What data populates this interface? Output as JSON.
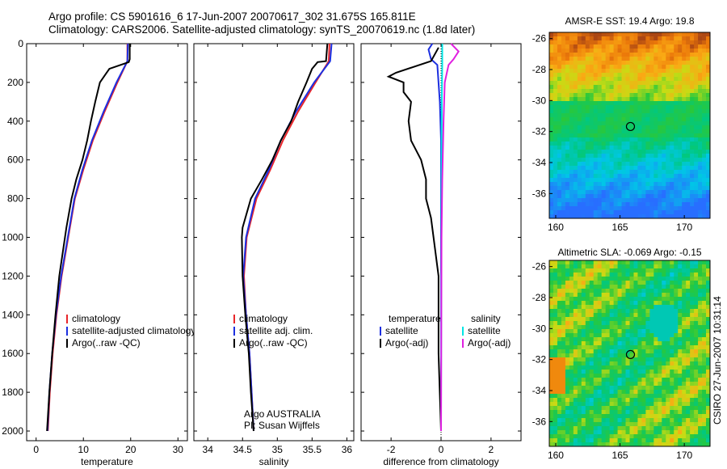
{
  "header": {
    "line1": "Argo profile: CS 5901616_6 17-Jun-2007 20070617_302 31.675S 165.811E",
    "line2": "Climatology: CARS2006. Satellite-adjusted climatology: synTS_20070619.nc (1.8d later)"
  },
  "side_label": "CSIRO 27-Jun-2007 10:31:14",
  "chart_data": [
    {
      "type": "line",
      "xlabel": "temperature",
      "ylabel": "",
      "xlim": [
        -2,
        32
      ],
      "ylim": [
        0,
        2050
      ],
      "y_reversed": true,
      "xticks": [
        0,
        10,
        20,
        30
      ],
      "yticks": [
        0,
        200,
        400,
        600,
        800,
        1000,
        1200,
        1400,
        1600,
        1800,
        2000
      ],
      "legend": [
        "climatology",
        "satellite-adjusted climatology",
        "Argo(..raw -QC)"
      ],
      "legend_position": "lower-right",
      "series": [
        {
          "name": "climatology",
          "color": "#e8262a",
          "points": [
            [
              19.3,
              0
            ],
            [
              19.3,
              90
            ],
            [
              17.2,
              200
            ],
            [
              14.5,
              350
            ],
            [
              12.0,
              500
            ],
            [
              10.0,
              650
            ],
            [
              8.2,
              800
            ],
            [
              6.8,
              1000
            ],
            [
              5.4,
              1200
            ],
            [
              4.3,
              1400
            ],
            [
              3.5,
              1600
            ],
            [
              2.9,
              1800
            ],
            [
              2.5,
              2000
            ]
          ]
        },
        {
          "name": "satellite-adjusted climatology",
          "color": "#1c2fe0",
          "points": [
            [
              19.4,
              0
            ],
            [
              19.3,
              90
            ],
            [
              17.0,
              200
            ],
            [
              14.3,
              350
            ],
            [
              11.8,
              500
            ],
            [
              9.8,
              650
            ],
            [
              8.1,
              800
            ],
            [
              6.7,
              1000
            ],
            [
              5.3,
              1200
            ],
            [
              4.2,
              1400
            ],
            [
              3.4,
              1600
            ],
            [
              2.8,
              1800
            ],
            [
              2.4,
              2000
            ]
          ]
        },
        {
          "name": "Argo(..raw -QC)",
          "color": "#000000",
          "points": [
            [
              19.8,
              0
            ],
            [
              19.8,
              80
            ],
            [
              19.6,
              95
            ],
            [
              15.5,
              130
            ],
            [
              13.5,
              200
            ],
            [
              12.5,
              300
            ],
            [
              11.6,
              400
            ],
            [
              10.8,
              500
            ],
            [
              9.8,
              600
            ],
            [
              8.5,
              700
            ],
            [
              7.5,
              800
            ],
            [
              6.4,
              950
            ],
            [
              5.5,
              1100
            ],
            [
              4.9,
              1200
            ],
            [
              4.1,
              1400
            ],
            [
              3.4,
              1600
            ],
            [
              2.8,
              1800
            ],
            [
              2.3,
              2000
            ]
          ]
        }
      ]
    },
    {
      "type": "line",
      "xlabel": "salinity",
      "xlim": [
        33.8,
        36.1
      ],
      "ylim": [
        0,
        2050
      ],
      "y_reversed": true,
      "xticks": [
        34,
        34.5,
        35,
        35.5,
        36
      ],
      "legend": [
        "climatology",
        "satellite adj. clim.",
        "Argo(..raw -QC)"
      ],
      "legend_position": "lower-right",
      "annotation": [
        "Argo AUSTRALIA",
        "PI: Susan Wijffels"
      ],
      "series": [
        {
          "name": "climatology",
          "color": "#e8262a",
          "points": [
            [
              35.75,
              0
            ],
            [
              35.74,
              90
            ],
            [
              35.55,
              200
            ],
            [
              35.3,
              350
            ],
            [
              35.08,
              500
            ],
            [
              34.9,
              650
            ],
            [
              34.7,
              800
            ],
            [
              34.56,
              1000
            ],
            [
              34.52,
              1200
            ],
            [
              34.55,
              1400
            ],
            [
              34.6,
              1600
            ],
            [
              34.63,
              1800
            ],
            [
              34.66,
              2000
            ]
          ]
        },
        {
          "name": "satellite adj. clim.",
          "color": "#1c2fe0",
          "points": [
            [
              35.78,
              0
            ],
            [
              35.76,
              90
            ],
            [
              35.53,
              200
            ],
            [
              35.27,
              350
            ],
            [
              35.05,
              500
            ],
            [
              34.88,
              650
            ],
            [
              34.68,
              800
            ],
            [
              34.55,
              1000
            ],
            [
              34.51,
              1200
            ],
            [
              34.55,
              1400
            ],
            [
              34.6,
              1600
            ],
            [
              34.63,
              1800
            ],
            [
              34.66,
              2000
            ]
          ]
        },
        {
          "name": "Argo(..raw -QC)",
          "color": "#000000",
          "points": [
            [
              35.72,
              0
            ],
            [
              35.7,
              90
            ],
            [
              35.58,
              95
            ],
            [
              35.5,
              130
            ],
            [
              35.42,
              200
            ],
            [
              35.3,
              300
            ],
            [
              35.2,
              400
            ],
            [
              35.05,
              500
            ],
            [
              34.93,
              600
            ],
            [
              34.78,
              700
            ],
            [
              34.62,
              800
            ],
            [
              34.5,
              950
            ],
            [
              34.49,
              1000
            ],
            [
              34.5,
              1200
            ],
            [
              34.54,
              1400
            ],
            [
              34.59,
              1600
            ],
            [
              34.62,
              1800
            ],
            [
              34.66,
              2000
            ]
          ]
        }
      ]
    },
    {
      "type": "line",
      "xlabel": "difference from climatology",
      "xlim": [
        -3.2,
        3.2
      ],
      "ylim": [
        0,
        2050
      ],
      "y_reversed": true,
      "xticks": [
        -2,
        0,
        2
      ],
      "legend_columns": [
        {
          "header": "temperature",
          "items": [
            "satellite",
            "Argo(-adj)"
          ]
        },
        {
          "header": "salinity",
          "items": [
            "satellite",
            "Argo(-adj)"
          ]
        }
      ],
      "legend_position": "lower-right",
      "series": [
        {
          "name": "temperature satellite",
          "color": "#1c2fe0",
          "points": [
            [
              -0.35,
              0
            ],
            [
              -0.5,
              30
            ],
            [
              -0.4,
              80
            ],
            [
              -0.15,
              110
            ],
            [
              -0.05,
              300
            ],
            [
              0,
              500
            ],
            [
              0,
              2000
            ]
          ]
        },
        {
          "name": "temperature Argo(-adj)",
          "color": "#000000",
          "points": [
            [
              -0.1,
              20
            ],
            [
              -0.4,
              90
            ],
            [
              -1.8,
              150
            ],
            [
              -2.1,
              170
            ],
            [
              -1.5,
              200
            ],
            [
              -1.5,
              250
            ],
            [
              -1.2,
              300
            ],
            [
              -1.3,
              400
            ],
            [
              -1.2,
              500
            ],
            [
              -0.8,
              600
            ],
            [
              -0.6,
              700
            ],
            [
              -0.6,
              800
            ],
            [
              -0.4,
              900
            ],
            [
              -0.3,
              1000
            ],
            [
              -0.1,
              1200
            ],
            [
              -0.1,
              1600
            ],
            [
              0,
              2000
            ]
          ]
        },
        {
          "name": "salinity satellite",
          "color": "#00e5e5",
          "points": [
            [
              0.05,
              0
            ],
            [
              0.05,
              100
            ],
            [
              0.03,
              300
            ],
            [
              0.02,
              700
            ],
            [
              0.01,
              1200
            ],
            [
              0,
              2000
            ]
          ]
        },
        {
          "name": "salinity Argo(-adj)",
          "color": "#e020e0",
          "points": [
            [
              0.4,
              0
            ],
            [
              0.7,
              40
            ],
            [
              0.5,
              80
            ],
            [
              0.3,
              110
            ],
            [
              0.15,
              200
            ],
            [
              0.1,
              400
            ],
            [
              0.05,
              700
            ],
            [
              0.02,
              1000
            ],
            [
              0,
              2000
            ]
          ]
        }
      ]
    },
    {
      "type": "heatmap",
      "title": "AMSR-E SST: 19.4 Argo: 19.8",
      "xlim": [
        159.5,
        172
      ],
      "ylim": [
        -37.6,
        -25.6
      ],
      "xticks": [
        160,
        165,
        170
      ],
      "yticks": [
        -26,
        -28,
        -30,
        -32,
        -34,
        -36
      ],
      "marker": {
        "lon": 165.811,
        "lat": -31.675
      }
    },
    {
      "type": "heatmap",
      "title": "Altimetric SLA: -0.069 Argo: -0.15",
      "xlim": [
        159.5,
        172
      ],
      "ylim": [
        -37.6,
        -25.6
      ],
      "xticks": [
        160,
        165,
        170
      ],
      "yticks": [
        -26,
        -28,
        -30,
        -32,
        -34,
        -36
      ],
      "marker": {
        "lon": 165.811,
        "lat": -31.675
      }
    }
  ]
}
